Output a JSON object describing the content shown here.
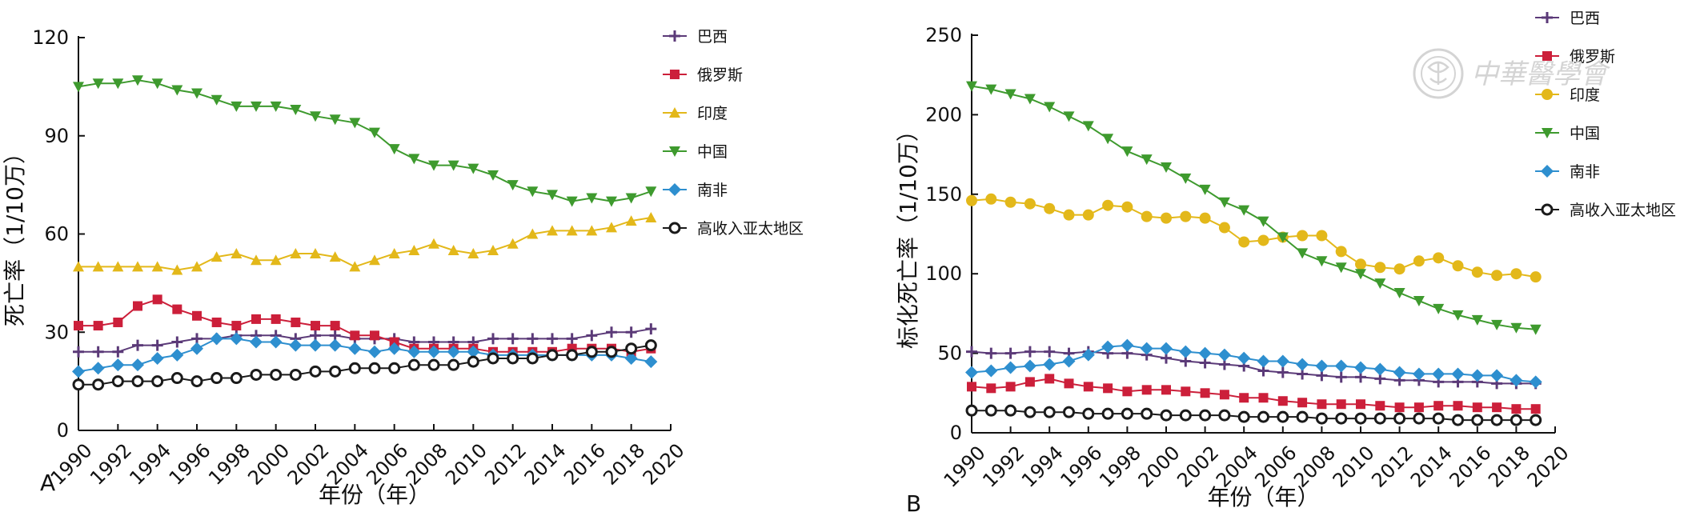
{
  "watermark": {
    "text": "中華醫學會"
  },
  "colors": {
    "巴西": "#5b3a78",
    "俄罗斯": "#cc1f3a",
    "印度": "#e3b81a",
    "中国": "#3e9a2e",
    "南非": "#2e8fcf",
    "高收入亚太地区": "#1a1a1a"
  },
  "chart_data": [
    {
      "type": "line",
      "panel_label": "A",
      "xlabel": "年份（年）",
      "ylabel": "死亡率（1/10万）",
      "xlim": [
        1990,
        2020
      ],
      "ylim": [
        0,
        120
      ],
      "x_ticks": [
        1990,
        1992,
        1994,
        1996,
        1998,
        2000,
        2002,
        2004,
        2006,
        2008,
        2010,
        2012,
        2014,
        2016,
        2018,
        2020
      ],
      "y_ticks": [
        0,
        30,
        60,
        90,
        120
      ],
      "x": [
        1990,
        1991,
        1992,
        1993,
        1994,
        1995,
        1996,
        1997,
        1998,
        1999,
        2000,
        2001,
        2002,
        2003,
        2004,
        2005,
        2006,
        2007,
        2008,
        2009,
        2010,
        2011,
        2012,
        2013,
        2014,
        2015,
        2016,
        2017,
        2018,
        2019
      ],
      "series": [
        {
          "name": "巴西",
          "marker": "plus",
          "values": [
            24,
            24,
            24,
            26,
            26,
            27,
            28,
            28,
            29,
            29,
            29,
            28,
            29,
            29,
            28,
            28,
            28,
            27,
            27,
            27,
            27,
            28,
            28,
            28,
            28,
            28,
            29,
            30,
            30,
            31
          ]
        },
        {
          "name": "俄罗斯",
          "marker": "square",
          "values": [
            32,
            32,
            33,
            38,
            40,
            37,
            35,
            33,
            32,
            34,
            34,
            33,
            32,
            32,
            29,
            29,
            27,
            25,
            25,
            25,
            25,
            24,
            24,
            24,
            24,
            25,
            25,
            25,
            24,
            25
          ]
        },
        {
          "name": "印度",
          "marker": "triangle-up",
          "values": [
            50,
            50,
            50,
            50,
            50,
            49,
            50,
            53,
            54,
            52,
            52,
            54,
            54,
            53,
            50,
            52,
            54,
            55,
            57,
            55,
            54,
            55,
            57,
            60,
            61,
            61,
            61,
            62,
            64,
            65
          ]
        },
        {
          "name": "中国",
          "marker": "triangle-down",
          "values": [
            105,
            106,
            106,
            107,
            106,
            104,
            103,
            101,
            99,
            99,
            99,
            98,
            96,
            95,
            94,
            91,
            86,
            83,
            81,
            81,
            80,
            78,
            75,
            73,
            72,
            70,
            71,
            70,
            71,
            73
          ]
        },
        {
          "name": "南非",
          "marker": "diamond",
          "values": [
            18,
            19,
            20,
            20,
            22,
            23,
            25,
            28,
            28,
            27,
            27,
            26,
            26,
            26,
            25,
            24,
            25,
            24,
            24,
            24,
            24,
            23,
            23,
            23,
            23,
            23,
            23,
            23,
            22,
            21
          ]
        },
        {
          "name": "高收入亚太地区",
          "marker": "circle",
          "values": [
            14,
            14,
            15,
            15,
            15,
            16,
            15,
            16,
            16,
            17,
            17,
            17,
            18,
            18,
            19,
            19,
            19,
            20,
            20,
            20,
            21,
            22,
            22,
            22,
            23,
            23,
            24,
            24,
            25,
            26
          ]
        }
      ]
    },
    {
      "type": "line",
      "panel_label": "B",
      "xlabel": "年份（年）",
      "ylabel": "标化死亡率（1/10万）",
      "xlim": [
        1990,
        2020
      ],
      "ylim": [
        0,
        250
      ],
      "x_ticks": [
        1990,
        1992,
        1994,
        1996,
        1998,
        2000,
        2002,
        2004,
        2006,
        2008,
        2010,
        2012,
        2014,
        2016,
        2018,
        2020
      ],
      "y_ticks": [
        0,
        50,
        100,
        150,
        200,
        250
      ],
      "x": [
        1990,
        1991,
        1992,
        1993,
        1994,
        1995,
        1996,
        1997,
        1998,
        1999,
        2000,
        2001,
        2002,
        2003,
        2004,
        2005,
        2006,
        2007,
        2008,
        2009,
        2010,
        2011,
        2012,
        2013,
        2014,
        2015,
        2016,
        2017,
        2018,
        2019
      ],
      "series": [
        {
          "name": "巴西",
          "marker": "plus",
          "values": [
            51,
            50,
            50,
            51,
            51,
            50,
            51,
            50,
            50,
            49,
            47,
            45,
            44,
            43,
            42,
            39,
            38,
            37,
            36,
            35,
            35,
            34,
            33,
            33,
            32,
            32,
            32,
            31,
            31,
            31
          ]
        },
        {
          "name": "俄罗斯",
          "marker": "square",
          "values": [
            29,
            28,
            29,
            32,
            34,
            31,
            29,
            28,
            26,
            27,
            27,
            26,
            25,
            24,
            22,
            22,
            20,
            19,
            18,
            18,
            18,
            17,
            16,
            16,
            17,
            17,
            16,
            16,
            15,
            15
          ]
        },
        {
          "name": "印度",
          "marker": "circle-filled",
          "values": [
            146,
            147,
            145,
            144,
            141,
            137,
            137,
            143,
            142,
            136,
            135,
            136,
            135,
            129,
            120,
            121,
            123,
            124,
            124,
            114,
            106,
            104,
            103,
            108,
            110,
            105,
            101,
            99,
            100,
            98
          ]
        },
        {
          "name": "中国",
          "marker": "triangle-down",
          "values": [
            218,
            216,
            213,
            210,
            205,
            199,
            193,
            185,
            177,
            172,
            167,
            160,
            153,
            145,
            140,
            133,
            123,
            113,
            108,
            104,
            100,
            94,
            88,
            83,
            78,
            74,
            71,
            68,
            66,
            65
          ]
        },
        {
          "name": "南非",
          "marker": "diamond",
          "values": [
            38,
            39,
            41,
            42,
            43,
            45,
            49,
            54,
            55,
            53,
            53,
            51,
            50,
            49,
            47,
            45,
            45,
            43,
            42,
            42,
            41,
            40,
            38,
            37,
            37,
            37,
            36,
            36,
            33,
            32
          ]
        },
        {
          "name": "高收入亚太地区",
          "marker": "circle",
          "values": [
            14,
            14,
            14,
            13,
            13,
            13,
            12,
            12,
            12,
            12,
            11,
            11,
            11,
            11,
            10,
            10,
            10,
            10,
            9,
            9,
            9,
            9,
            9,
            9,
            9,
            8,
            8,
            8,
            8,
            8
          ]
        }
      ]
    }
  ]
}
